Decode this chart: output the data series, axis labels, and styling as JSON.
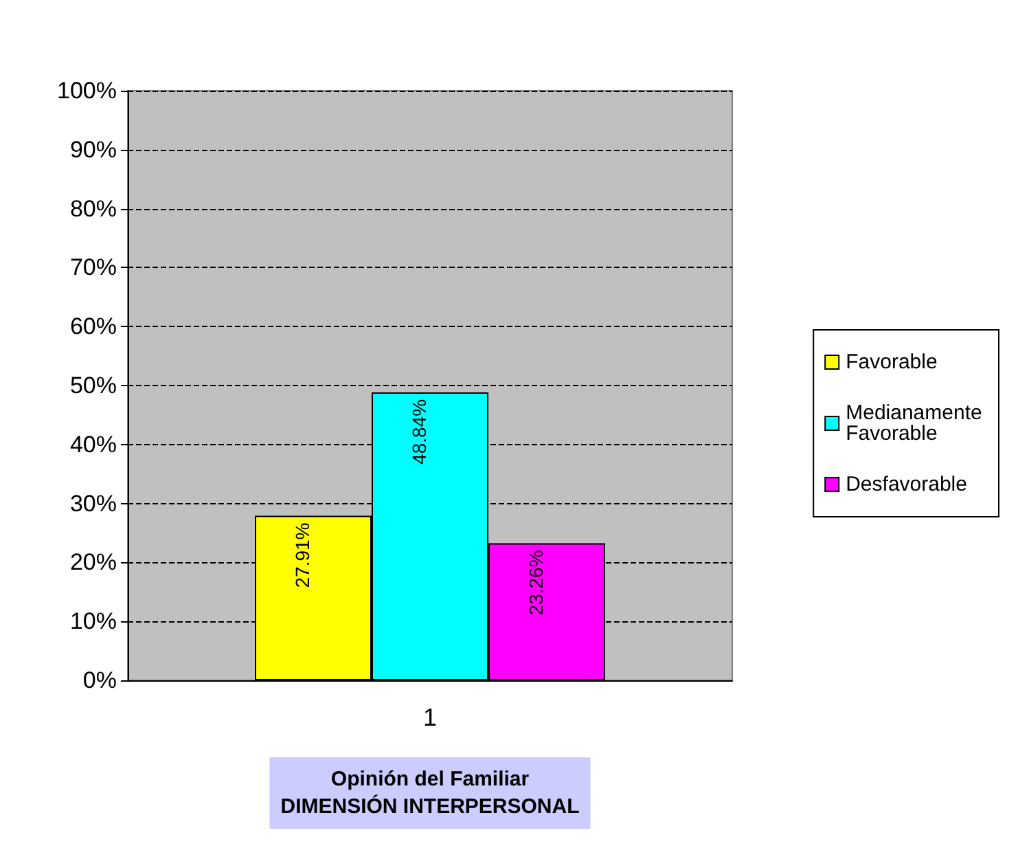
{
  "chart_data": {
    "type": "bar",
    "xlabel": "Opinión del Familiar\nDIMENSIÓN INTERPERSONAL",
    "categories": [
      "1"
    ],
    "series": [
      {
        "name": "Favorable",
        "color": "#ffff00",
        "values": [
          27.91
        ],
        "value_labels": [
          "27.91%"
        ]
      },
      {
        "name": "Medianamente Favorable",
        "color": "#00ffff",
        "values": [
          48.84
        ],
        "value_labels": [
          "48.84%"
        ]
      },
      {
        "name": "Desfavorable",
        "color": "#ff00ff",
        "values": [
          23.26
        ],
        "value_labels": [
          "23.26%"
        ]
      }
    ],
    "ylim": [
      0,
      100
    ],
    "yticks": [
      {
        "value": 0,
        "label": "0%"
      },
      {
        "value": 10,
        "label": "10%"
      },
      {
        "value": 20,
        "label": "20%"
      },
      {
        "value": 30,
        "label": "30%"
      },
      {
        "value": 40,
        "label": "40%"
      },
      {
        "value": 50,
        "label": "50%"
      },
      {
        "value": 60,
        "label": "60%"
      },
      {
        "value": 70,
        "label": "70%"
      },
      {
        "value": 80,
        "label": "80%"
      },
      {
        "value": 90,
        "label": "90%"
      },
      {
        "value": 100,
        "label": "100%"
      }
    ],
    "grid": "y",
    "legend": "right"
  }
}
